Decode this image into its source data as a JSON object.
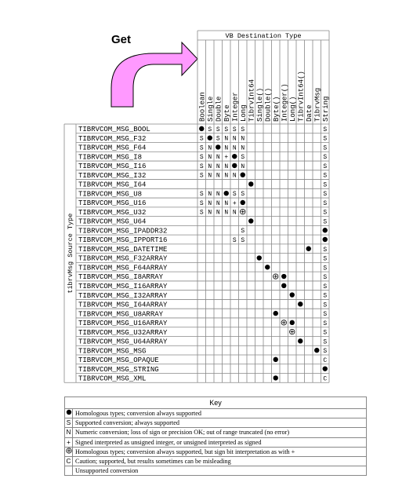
{
  "title": "Get",
  "dest_header": "VB Destination Type",
  "source_header": "tibrvMsg Source Type",
  "destinations": [
    "Boolean",
    "Single",
    "Double",
    "Byte",
    "Integer",
    "Long",
    "TibrvInt64",
    "Single()",
    "Double()",
    "Byte()",
    "Integer()",
    "Long()",
    "TibrvInt64()",
    "Date",
    "TibrvMsg",
    "String"
  ],
  "rows": [
    {
      "label": "TIBRVCOM_MSG_BOOL",
      "cells": [
        "H",
        "S",
        "S",
        "S",
        "S",
        "S",
        "",
        "",
        "",
        "",
        "",
        "",
        "",
        "",
        "",
        "S"
      ]
    },
    {
      "label": "TIBRVCOM_MSG_F32",
      "cells": [
        "S",
        "H",
        "S",
        "N",
        "N",
        "N",
        "",
        "",
        "",
        "",
        "",
        "",
        "",
        "",
        "",
        "S"
      ]
    },
    {
      "label": "TIBRVCOM_MSG_F64",
      "cells": [
        "S",
        "N",
        "H",
        "N",
        "N",
        "N",
        "",
        "",
        "",
        "",
        "",
        "",
        "",
        "",
        "",
        "S"
      ]
    },
    {
      "label": "TIBRVCOM_MSG_I8",
      "cells": [
        "S",
        "N",
        "N",
        "+",
        "H",
        "S",
        "",
        "",
        "",
        "",
        "",
        "",
        "",
        "",
        "",
        "S"
      ]
    },
    {
      "label": "TIBRVCOM_MSG_I16",
      "cells": [
        "S",
        "N",
        "N",
        "N",
        "H",
        "N",
        "",
        "",
        "",
        "",
        "",
        "",
        "",
        "",
        "",
        "S"
      ]
    },
    {
      "label": "TIBRVCOM_MSG_I32",
      "cells": [
        "S",
        "N",
        "N",
        "N",
        "N",
        "H",
        "",
        "",
        "",
        "",
        "",
        "",
        "",
        "",
        "",
        "S"
      ]
    },
    {
      "label": "TIBRVCOM_MSG_I64",
      "cells": [
        "",
        "",
        "",
        "",
        "",
        "",
        "H",
        "",
        "",
        "",
        "",
        "",
        "",
        "",
        "",
        "S"
      ]
    },
    {
      "label": "TIBRVCOM_MSG_U8",
      "cells": [
        "S",
        "N",
        "N",
        "H",
        "S",
        "S",
        "",
        "",
        "",
        "",
        "",
        "",
        "",
        "",
        "",
        "S"
      ]
    },
    {
      "label": "TIBRVCOM_MSG_U16",
      "cells": [
        "S",
        "N",
        "N",
        "N",
        "+",
        "H",
        "",
        "",
        "",
        "",
        "",
        "",
        "",
        "",
        "",
        "S"
      ]
    },
    {
      "label": "TIBRVCOM_MSG_U32",
      "cells": [
        "S",
        "N",
        "N",
        "N",
        "N",
        "X",
        "",
        "",
        "",
        "",
        "",
        "",
        "",
        "",
        "",
        "S"
      ]
    },
    {
      "label": "TIBRVCOM_MSG_U64",
      "cells": [
        "",
        "",
        "",
        "",
        "",
        "",
        "H",
        "",
        "",
        "",
        "",
        "",
        "",
        "",
        "",
        "S"
      ]
    },
    {
      "label": "TIBRVCOM_MSG_IPADDR32",
      "cells": [
        "",
        "",
        "",
        "",
        "",
        "S",
        "",
        "",
        "",
        "",
        "",
        "",
        "",
        "",
        "",
        "H"
      ]
    },
    {
      "label": "TIBRVCOM_MSG_IPPORT16",
      "cells": [
        "",
        "",
        "",
        "",
        "S",
        "S",
        "",
        "",
        "",
        "",
        "",
        "",
        "",
        "",
        "",
        "H"
      ]
    },
    {
      "label": "TIBRVCOM_MSG_DATETIME",
      "cells": [
        "",
        "",
        "",
        "",
        "",
        "",
        "",
        "",
        "",
        "",
        "",
        "",
        "",
        "H",
        "",
        "S"
      ]
    },
    {
      "label": "TIBRVCOM_MSG_F32ARRAY",
      "cells": [
        "",
        "",
        "",
        "",
        "",
        "",
        "",
        "H",
        "",
        "",
        "",
        "",
        "",
        "",
        "",
        "S"
      ]
    },
    {
      "label": "TIBRVCOM_MSG_F64ARRAY",
      "cells": [
        "",
        "",
        "",
        "",
        "",
        "",
        "",
        "",
        "H",
        "",
        "",
        "",
        "",
        "",
        "",
        "S"
      ]
    },
    {
      "label": "TIBRVCOM_MSG_I8ARRAY",
      "cells": [
        "",
        "",
        "",
        "",
        "",
        "",
        "",
        "",
        "",
        "X",
        "H",
        "",
        "",
        "",
        "",
        "S"
      ]
    },
    {
      "label": "TIBRVCOM_MSG_I16ARRAY",
      "cells": [
        "",
        "",
        "",
        "",
        "",
        "",
        "",
        "",
        "",
        "",
        "H",
        "",
        "",
        "",
        "",
        "S"
      ]
    },
    {
      "label": "TIBRVCOM_MSG_I32ARRAY",
      "cells": [
        "",
        "",
        "",
        "",
        "",
        "",
        "",
        "",
        "",
        "",
        "",
        "H",
        "",
        "",
        "",
        "S"
      ]
    },
    {
      "label": "TIBRVCOM_MSG_I64ARRAY",
      "cells": [
        "",
        "",
        "",
        "",
        "",
        "",
        "",
        "",
        "",
        "",
        "",
        "",
        "H",
        "",
        "",
        "S"
      ]
    },
    {
      "label": "TIBRVCOM_MSG_U8ARRAY",
      "cells": [
        "",
        "",
        "",
        "",
        "",
        "",
        "",
        "",
        "",
        "H",
        "",
        "",
        "",
        "",
        "",
        "S"
      ]
    },
    {
      "label": "TIBRVCOM_MSG_U16ARRAY",
      "cells": [
        "",
        "",
        "",
        "",
        "",
        "",
        "",
        "",
        "",
        "",
        "X",
        "H",
        "",
        "",
        "",
        "S"
      ]
    },
    {
      "label": "TIBRVCOM_MSG_U32ARRAY",
      "cells": [
        "",
        "",
        "",
        "",
        "",
        "",
        "",
        "",
        "",
        "",
        "",
        "X",
        "",
        "",
        "",
        "S"
      ]
    },
    {
      "label": "TIBRVCOM_MSG_U64ARRAY",
      "cells": [
        "",
        "",
        "",
        "",
        "",
        "",
        "",
        "",
        "",
        "",
        "",
        "",
        "H",
        "",
        "",
        "S"
      ]
    },
    {
      "label": "TIBRVCOM_MSG_MSG",
      "cells": [
        "",
        "",
        "",
        "",
        "",
        "",
        "",
        "",
        "",
        "",
        "",
        "",
        "",
        "",
        "H",
        "S"
      ]
    },
    {
      "label": "TIBRVCOM_MSG_OPAQUE",
      "cells": [
        "",
        "",
        "",
        "",
        "",
        "",
        "",
        "",
        "",
        "H",
        "",
        "",
        "",
        "",
        "",
        "C"
      ]
    },
    {
      "label": "TIBRVCOM_MSG_STRING",
      "cells": [
        "",
        "",
        "",
        "",
        "",
        "",
        "",
        "",
        "",
        "",
        "",
        "",
        "",
        "",
        "",
        "H"
      ]
    },
    {
      "label": "TIBRVCOM_MSG_XML",
      "cells": [
        "",
        "",
        "",
        "",
        "",
        "",
        "",
        "",
        "",
        "H",
        "",
        "",
        "",
        "",
        "",
        "C"
      ]
    }
  ],
  "key": {
    "title": "Key",
    "items": [
      {
        "symbol": "H",
        "desc": "Homologous types; conversion always supported"
      },
      {
        "symbol": "S",
        "desc": "Supported conversion; always supported"
      },
      {
        "symbol": "N",
        "desc": "Numeric conversion; loss of sign or precision OK; out of range truncated (no error)"
      },
      {
        "symbol": "+",
        "desc": "Signed interpreted as unsigned integer, or unsigned interpreted as signed"
      },
      {
        "symbol": "X",
        "desc": "Homologous types; conversion always supported, but sign bit interpretation as with +"
      },
      {
        "symbol": "C",
        "desc": "Caution; supported, but results sometimes can be misleading"
      },
      {
        "symbol": "",
        "desc": "Unsupported conversion"
      }
    ]
  },
  "colors": {
    "arrow_fill": "#ff99ff",
    "grid": "#888888",
    "ink": "#000000"
  }
}
